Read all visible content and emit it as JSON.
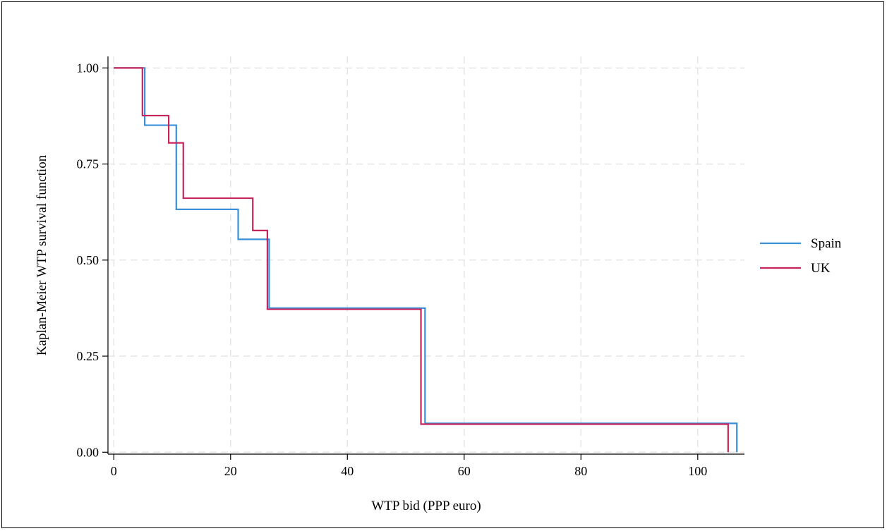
{
  "chart_data": {
    "type": "line",
    "step": true,
    "xlabel": "WTP bid (PPP euro)",
    "ylabel": "Kaplan-Meier WTP survival function",
    "xlim": [
      -1,
      108
    ],
    "ylim": [
      -0.005,
      1.03
    ],
    "xticks": [
      0,
      20,
      40,
      60,
      80,
      100
    ],
    "xtick_labels": [
      "0",
      "20",
      "40",
      "60",
      "80",
      "100"
    ],
    "yticks": [
      0,
      0.25,
      0.5,
      0.75,
      1.0
    ],
    "ytick_labels": [
      "0.00",
      "0.25",
      "0.50",
      "0.75",
      "1.00"
    ],
    "grid": true,
    "legend_position": "right",
    "series": [
      {
        "name": "Spain",
        "color": "#3a8fd9",
        "x": [
          0,
          5.3,
          10.7,
          21.3,
          26.6,
          53.3,
          106.7,
          106.7
        ],
        "y": [
          1.0,
          0.851,
          0.632,
          0.554,
          0.375,
          0.075,
          0.075,
          0.0
        ]
      },
      {
        "name": "UK",
        "color": "#c8245c",
        "x": [
          0,
          4.9,
          9.4,
          11.9,
          23.8,
          26.3,
          52.6,
          105.2,
          105.2
        ],
        "y": [
          1.0,
          0.876,
          0.805,
          0.661,
          0.577,
          0.372,
          0.073,
          0.073,
          0.0
        ]
      }
    ]
  }
}
